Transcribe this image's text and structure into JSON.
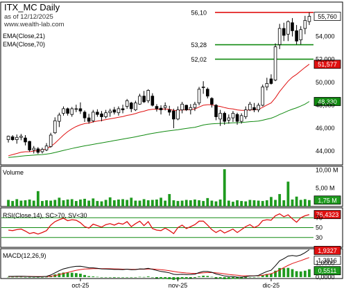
{
  "header": {
    "title": "ITX_MC Daily",
    "subtitle": "as of 12/12/2025",
    "website": "www.wealth-lab.com"
  },
  "colors": {
    "up_candle": "#ffffff",
    "down_candle": "#000000",
    "ema21": "#e01010",
    "ema70": "#108a10",
    "volume": "#1e9a1e",
    "rsi": "#e01010",
    "macd": "#000000",
    "macd_signal": "#e01010",
    "macd_hist": "#1e9a1e",
    "resistance": "#e01010",
    "support": "#108a10",
    "price_tag": "#ffffff",
    "ema21_tag": "#e01010",
    "ema70_tag": "#108a10"
  },
  "chart_data": [
    {
      "type": "candlestick",
      "title": "ITX_MC Daily",
      "pane": "price",
      "ylim": [
        42.8,
        57.0
      ],
      "y_ticks": [
        "44,000",
        "46,000",
        "48,000",
        "50,000",
        "52,000",
        "54,000"
      ],
      "y_tick_values": [
        44,
        46,
        48,
        50,
        52,
        54
      ],
      "x_ticks": [
        "oct-25",
        "nov-25",
        "dic-25"
      ],
      "x_tick_index": [
        17,
        40,
        62
      ],
      "last_price_label": "55,760",
      "last_price": 55.76,
      "ohlc": [
        [
          45.0,
          45.35,
          44.75,
          45.3
        ],
        [
          45.25,
          45.4,
          44.9,
          45.0
        ],
        [
          45.0,
          45.45,
          44.65,
          45.2
        ],
        [
          45.2,
          45.5,
          44.95,
          45.3
        ],
        [
          45.15,
          45.4,
          44.5,
          44.8
        ],
        [
          44.85,
          44.9,
          43.95,
          44.1
        ],
        [
          44.1,
          44.45,
          43.8,
          44.25
        ],
        [
          44.2,
          44.35,
          43.75,
          43.9
        ],
        [
          43.95,
          44.3,
          43.8,
          44.15
        ],
        [
          44.1,
          44.7,
          44.0,
          44.45
        ],
        [
          44.4,
          45.6,
          44.3,
          45.4
        ],
        [
          45.6,
          46.95,
          45.5,
          46.65
        ],
        [
          46.6,
          47.35,
          46.1,
          47.15
        ],
        [
          47.3,
          47.9,
          47.1,
          47.7
        ],
        [
          47.7,
          47.8,
          47.1,
          47.3
        ],
        [
          47.2,
          47.85,
          47.0,
          47.7
        ],
        [
          47.7,
          48.05,
          47.4,
          47.7
        ],
        [
          47.7,
          48.25,
          47.25,
          47.5
        ],
        [
          47.4,
          47.55,
          46.55,
          46.9
        ],
        [
          46.9,
          47.25,
          46.4,
          46.6
        ],
        [
          46.65,
          47.6,
          46.5,
          47.4
        ],
        [
          47.4,
          47.65,
          47.0,
          47.2
        ],
        [
          47.25,
          47.5,
          46.6,
          47.0
        ],
        [
          47.0,
          47.6,
          46.85,
          47.35
        ],
        [
          47.35,
          47.7,
          47.0,
          47.5
        ],
        [
          47.6,
          47.85,
          47.2,
          47.4
        ],
        [
          47.35,
          47.9,
          47.1,
          47.7
        ],
        [
          47.7,
          48.05,
          47.3,
          47.6
        ],
        [
          47.9,
          48.55,
          47.7,
          48.4
        ],
        [
          48.2,
          48.3,
          47.4,
          47.7
        ],
        [
          47.6,
          48.4,
          47.5,
          48.2
        ],
        [
          48.1,
          49.0,
          48.05,
          48.8
        ],
        [
          48.8,
          49.25,
          48.2,
          48.3
        ],
        [
          48.4,
          49.4,
          48.2,
          49.3
        ],
        [
          48.8,
          49.05,
          47.9,
          48.0
        ],
        [
          47.9,
          48.1,
          47.45,
          47.7
        ],
        [
          47.75,
          48.0,
          47.2,
          47.6
        ],
        [
          47.8,
          48.25,
          47.55,
          47.95
        ],
        [
          47.6,
          47.95,
          47.1,
          47.4
        ],
        [
          47.5,
          47.7,
          46.0,
          46.8
        ],
        [
          46.8,
          47.9,
          46.7,
          47.6
        ],
        [
          47.6,
          48.3,
          47.3,
          48.1
        ],
        [
          48.0,
          48.05,
          47.5,
          47.6
        ],
        [
          47.6,
          48.1,
          47.2,
          47.8
        ],
        [
          47.8,
          48.3,
          47.5,
          48.1
        ],
        [
          48.2,
          49.6,
          48.0,
          49.4
        ],
        [
          49.6,
          50.1,
          49.0,
          49.6
        ],
        [
          49.4,
          49.55,
          48.6,
          48.8
        ],
        [
          48.6,
          48.7,
          47.8,
          48.1
        ],
        [
          48.0,
          48.1,
          46.7,
          47.0
        ],
        [
          46.8,
          47.6,
          46.2,
          47.3
        ],
        [
          47.3,
          47.45,
          46.3,
          46.6
        ],
        [
          46.7,
          47.2,
          46.4,
          46.9
        ],
        [
          46.9,
          47.5,
          46.55,
          47.3
        ],
        [
          47.2,
          47.35,
          46.3,
          46.6
        ],
        [
          46.6,
          47.3,
          46.4,
          47.1
        ],
        [
          47.0,
          47.9,
          46.8,
          47.6
        ],
        [
          47.6,
          48.3,
          47.5,
          48.1
        ],
        [
          47.8,
          48.2,
          47.4,
          47.6
        ],
        [
          47.6,
          48.2,
          47.4,
          48.0
        ],
        [
          48.0,
          49.8,
          47.9,
          49.6
        ],
        [
          49.6,
          50.4,
          49.3,
          49.9
        ],
        [
          50.3,
          50.7,
          49.8,
          49.9
        ],
        [
          50.2,
          53.4,
          50.1,
          53.1
        ],
        [
          53.3,
          55.1,
          52.9,
          54.7
        ],
        [
          54.7,
          55.2,
          53.6,
          54.1
        ],
        [
          54.2,
          55.4,
          53.6,
          55.3
        ],
        [
          55.2,
          55.6,
          54.0,
          54.5
        ],
        [
          54.5,
          55.0,
          53.3,
          53.6
        ],
        [
          53.7,
          54.9,
          53.3,
          54.6
        ],
        [
          54.7,
          55.8,
          54.2,
          55.4
        ],
        [
          55.3,
          56.1,
          55.0,
          55.76
        ]
      ],
      "ema21_label": "EMA(Close,21)",
      "ema21_value_label": "51,577",
      "ema21_value": 51.577,
      "ema21": [
        43.6,
        43.7,
        43.8,
        43.9,
        43.95,
        43.95,
        44.0,
        44.05,
        44.1,
        44.2,
        44.4,
        44.7,
        45.05,
        45.4,
        45.7,
        45.95,
        46.15,
        46.3,
        46.4,
        46.45,
        46.55,
        46.62,
        46.68,
        46.75,
        46.82,
        46.88,
        46.95,
        47.02,
        47.12,
        47.18,
        47.28,
        47.4,
        47.48,
        47.6,
        47.65,
        47.66,
        47.66,
        47.68,
        47.65,
        47.55,
        47.55,
        47.6,
        47.6,
        47.62,
        47.67,
        47.85,
        48.0,
        48.05,
        48.05,
        47.95,
        47.9,
        47.8,
        47.72,
        47.68,
        47.6,
        47.56,
        47.56,
        47.6,
        47.6,
        47.64,
        47.82,
        48.02,
        48.2,
        48.65,
        49.2,
        49.65,
        50.1,
        50.45,
        50.7,
        51.0,
        51.3,
        51.577
      ],
      "ema70_label": "EMA(Close,70)",
      "ema70_value_label": "48,330",
      "ema70_value": 48.33,
      "ema70": [
        43.45,
        43.48,
        43.52,
        43.56,
        43.6,
        43.62,
        43.65,
        43.68,
        43.7,
        43.74,
        43.8,
        43.88,
        43.97,
        44.06,
        44.15,
        44.23,
        44.31,
        44.39,
        44.46,
        44.52,
        44.59,
        44.66,
        44.72,
        44.79,
        44.85,
        44.92,
        44.98,
        45.05,
        45.12,
        45.18,
        45.25,
        45.33,
        45.4,
        45.48,
        45.55,
        45.61,
        45.67,
        45.73,
        45.78,
        45.82,
        45.87,
        45.93,
        45.98,
        46.03,
        46.08,
        46.18,
        46.28,
        46.34,
        46.38,
        46.4,
        46.42,
        46.43,
        46.45,
        46.47,
        46.48,
        46.5,
        46.53,
        46.57,
        46.59,
        46.62,
        46.7,
        46.79,
        46.87,
        47.02,
        47.2,
        47.35,
        47.52,
        47.66,
        47.78,
        47.93,
        48.1,
        48.33
      ],
      "levels": [
        {
          "label": "56,10",
          "value": 56.1,
          "kind": "resistance"
        },
        {
          "label": "53,28",
          "value": 53.28,
          "kind": "support"
        },
        {
          "label": "52,02",
          "value": 52.02,
          "kind": "support"
        }
      ]
    },
    {
      "type": "bar",
      "pane": "volume",
      "label": "Volume",
      "ylim": [
        0,
        11.0
      ],
      "y_ticks": [
        "10,00 M",
        "5,00 M"
      ],
      "y_tick_values": [
        10,
        5
      ],
      "last_value_label": "1,75 M",
      "last_value": 1.75,
      "values": [
        1.8,
        1.5,
        2.0,
        1.6,
        1.7,
        1.9,
        1.6,
        4.2,
        1.5,
        1.7,
        1.6,
        1.8,
        2.4,
        1.7,
        1.9,
        2.0,
        1.5,
        1.9,
        2.1,
        1.6,
        2.2,
        1.5,
        1.4,
        1.8,
        2.5,
        1.7,
        1.9,
        2.0,
        1.8,
        2.4,
        1.6,
        1.6,
        2.0,
        1.7,
        1.8,
        1.9,
        2.4,
        1.6,
        3.4,
        1.7,
        1.5,
        1.6,
        1.8,
        1.7,
        1.9,
        1.7,
        1.5,
        2.3,
        1.6,
        1.4,
        1.9,
        10.2,
        1.6,
        1.3,
        1.7,
        1.5,
        1.4,
        1.8,
        1.7,
        1.6,
        1.5,
        1.7,
        2.6,
        1.8,
        3.4,
        1.7,
        6.8,
        1.9,
        2.7,
        1.8,
        2.0,
        1.75
      ]
    },
    {
      "type": "line",
      "pane": "rsi",
      "label": "RSI(Close,14), SC>70, SV<30",
      "ylim": [
        10,
        90
      ],
      "y_ticks": [
        "70",
        "50",
        "30"
      ],
      "y_tick_values": [
        70,
        50,
        30
      ],
      "last_value_label": "76,4323",
      "last_value": 76.4323,
      "values": [
        45,
        44,
        46,
        47,
        43,
        38,
        40,
        37,
        40,
        44,
        55,
        62,
        66,
        69,
        64,
        66,
        65,
        60,
        52,
        49,
        57,
        54,
        51,
        56,
        58,
        55,
        59,
        57,
        62,
        52,
        58,
        63,
        54,
        62,
        48,
        45,
        44,
        49,
        44,
        38,
        50,
        55,
        48,
        52,
        56,
        63,
        63,
        55,
        46,
        40,
        45,
        39,
        43,
        47,
        40,
        46,
        52,
        56,
        50,
        54,
        64,
        66,
        65,
        74,
        78,
        72,
        76,
        68,
        61,
        70,
        74,
        76.4323
      ]
    },
    {
      "type": "line",
      "pane": "macd",
      "label": "MACD(12,26,9)",
      "ylim": [
        -0.1,
        2.0
      ],
      "y_ticks": [
        "1,0000",
        "0,0000"
      ],
      "y_tick_values": [
        1.0,
        0.0
      ],
      "macd_label": "1,9327",
      "macd_last": 1.9327,
      "signal_label": "1,3816",
      "signal_last": 1.3816,
      "hist_label": "0,5511",
      "hist_last": 0.5511,
      "macd": [
        0.05,
        0.05,
        0.06,
        0.06,
        0.05,
        0.03,
        0.03,
        0.02,
        0.03,
        0.05,
        0.15,
        0.3,
        0.45,
        0.58,
        0.65,
        0.72,
        0.76,
        0.77,
        0.72,
        0.65,
        0.65,
        0.62,
        0.58,
        0.57,
        0.56,
        0.54,
        0.54,
        0.53,
        0.56,
        0.52,
        0.53,
        0.58,
        0.57,
        0.62,
        0.55,
        0.47,
        0.4,
        0.36,
        0.3,
        0.2,
        0.18,
        0.2,
        0.18,
        0.19,
        0.21,
        0.32,
        0.4,
        0.4,
        0.34,
        0.22,
        0.16,
        0.08,
        0.05,
        0.04,
        0.0,
        0.0,
        0.03,
        0.08,
        0.09,
        0.12,
        0.26,
        0.4,
        0.48,
        0.8,
        1.15,
        1.3,
        1.48,
        1.52,
        1.48,
        1.56,
        1.72,
        1.9327
      ],
      "signal": [
        0.04,
        0.04,
        0.05,
        0.05,
        0.05,
        0.05,
        0.04,
        0.04,
        0.04,
        0.04,
        0.06,
        0.11,
        0.18,
        0.26,
        0.33,
        0.41,
        0.48,
        0.53,
        0.57,
        0.58,
        0.6,
        0.6,
        0.6,
        0.6,
        0.59,
        0.58,
        0.57,
        0.56,
        0.56,
        0.55,
        0.55,
        0.56,
        0.56,
        0.57,
        0.57,
        0.55,
        0.52,
        0.49,
        0.45,
        0.4,
        0.35,
        0.32,
        0.29,
        0.27,
        0.26,
        0.27,
        0.3,
        0.32,
        0.32,
        0.3,
        0.27,
        0.23,
        0.19,
        0.16,
        0.13,
        0.1,
        0.09,
        0.09,
        0.09,
        0.1,
        0.13,
        0.18,
        0.24,
        0.35,
        0.51,
        0.67,
        0.83,
        0.96,
        1.06,
        1.16,
        1.27,
        1.3816
      ]
    }
  ]
}
